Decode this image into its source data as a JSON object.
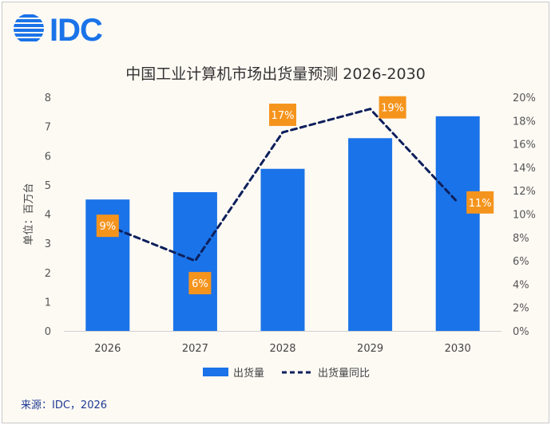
{
  "logo": {
    "text": "IDC",
    "icon": "globe-stripes-icon",
    "color": "#1a73e8"
  },
  "footer": {
    "source": "来源：IDC，2026"
  },
  "chart_data": {
    "type": "bar+line",
    "title": "中国工业计算机市场出货量预测 2026-2030",
    "categories": [
      "2026",
      "2027",
      "2028",
      "2029",
      "2030"
    ],
    "ylabel": "单位：百万台",
    "ylim": [
      0,
      8
    ],
    "yticks": [
      "0",
      "1",
      "2",
      "3",
      "4",
      "5",
      "6",
      "7",
      "8"
    ],
    "y2lim": [
      0,
      20
    ],
    "y2ticks": [
      "0%",
      "2%",
      "4%",
      "6%",
      "8%",
      "10%",
      "12%",
      "14%",
      "16%",
      "18%",
      "20%"
    ],
    "grid": false,
    "legend_placement": "bottom",
    "series": [
      {
        "name": "出货量",
        "type": "bar",
        "axis": "left",
        "color": "#1a73e8",
        "values": [
          4.5,
          4.75,
          5.55,
          6.6,
          7.35
        ]
      },
      {
        "name": "出货量同比",
        "type": "line",
        "style": "dashed",
        "axis": "right",
        "color": "#0d1f5c",
        "values": [
          9,
          6,
          17,
          19,
          11
        ],
        "labels": [
          "9%",
          "6%",
          "17%",
          "19%",
          "11%"
        ],
        "label_color": "#f5941d"
      }
    ]
  }
}
